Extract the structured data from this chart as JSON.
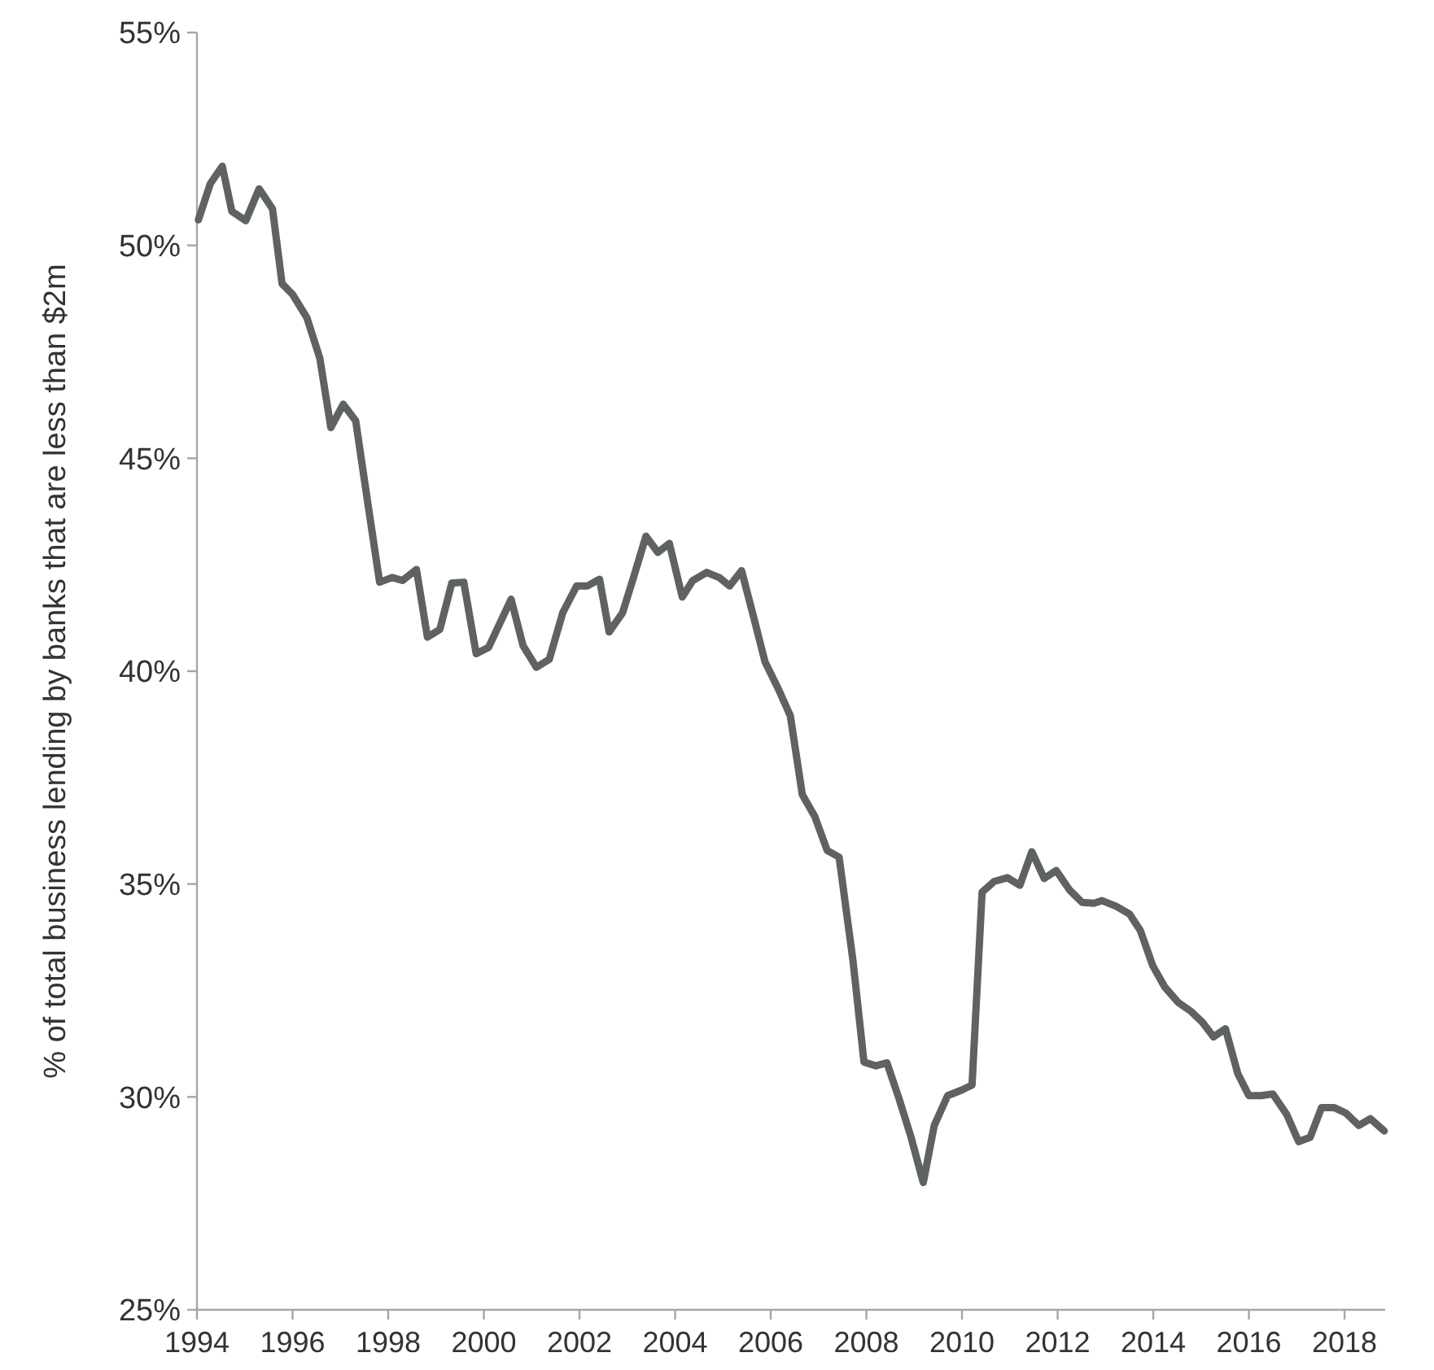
{
  "chart_data": {
    "type": "line",
    "ylabel": "% of total business lending by banks that are less than $2m",
    "xlim": [
      1994,
      2018.85
    ],
    "xticks": [
      1994,
      1996,
      1998,
      2000,
      2002,
      2004,
      2006,
      2008,
      2010,
      2012,
      2014,
      2016,
      2018
    ],
    "ylim": [
      25,
      55
    ],
    "yticks": [
      {
        "value": 25,
        "label": "25%"
      },
      {
        "value": 30,
        "label": "30%"
      },
      {
        "value": 35,
        "label": "35%"
      },
      {
        "value": 40,
        "label": "40%"
      },
      {
        "value": 45,
        "label": "45%"
      },
      {
        "value": 50,
        "label": "50%"
      },
      {
        "value": 55,
        "label": "55%"
      }
    ],
    "grid": false,
    "marker": "none",
    "line_style": "solid",
    "series": [
      {
        "color": "#5f6262",
        "x": [
          1994.03,
          1994.28,
          1994.53,
          1994.73,
          1995.02,
          1995.3,
          1995.58,
          1995.78,
          1996.0,
          1996.3,
          1996.57,
          1996.8,
          1997.06,
          1997.32,
          1997.57,
          1997.82,
          1998.08,
          1998.3,
          1998.59,
          1998.82,
          1999.08,
          1999.33,
          1999.58,
          1999.84,
          2000.1,
          2000.57,
          2000.82,
          2001.1,
          2001.37,
          2001.65,
          2001.94,
          2002.16,
          2002.42,
          2002.62,
          2002.9,
          2003.13,
          2003.39,
          2003.64,
          2003.88,
          2004.15,
          2004.37,
          2004.66,
          2004.92,
          2005.14,
          2005.39,
          2005.62,
          2005.88,
          2006.16,
          2006.41,
          2006.66,
          2006.92,
          2007.18,
          2007.43,
          2007.72,
          2007.95,
          2008.2,
          2008.43,
          2008.68,
          2008.93,
          2009.19,
          2009.42,
          2009.7,
          2009.99,
          2010.21,
          2010.42,
          2010.67,
          2010.95,
          2011.21,
          2011.46,
          2011.72,
          2011.97,
          2012.25,
          2012.51,
          2012.76,
          2012.93,
          2013.22,
          2013.5,
          2013.73,
          2013.99,
          2014.24,
          2014.52,
          2014.8,
          2015.03,
          2015.26,
          2015.51,
          2015.77,
          2016.0,
          2016.26,
          2016.5,
          2016.79,
          2017.04,
          2017.28,
          2017.52,
          2017.78,
          2018.03,
          2018.3,
          2018.54,
          2018.83
        ],
        "values": [
          50.6,
          51.45,
          51.86,
          50.8,
          50.58,
          51.33,
          50.86,
          49.1,
          48.85,
          48.3,
          47.35,
          45.72,
          46.27,
          45.88,
          43.97,
          42.09,
          42.2,
          42.13,
          42.39,
          40.8,
          40.98,
          42.07,
          42.09,
          40.41,
          40.56,
          41.69,
          40.6,
          40.09,
          40.28,
          41.37,
          42.0,
          42.0,
          42.16,
          40.92,
          41.37,
          42.2,
          43.17,
          42.79,
          43.0,
          41.74,
          42.13,
          42.32,
          42.2,
          42.0,
          42.36,
          41.37,
          40.22,
          39.58,
          38.95,
          37.1,
          36.59,
          35.79,
          35.63,
          33.2,
          30.82,
          30.73,
          30.8,
          29.97,
          29.07,
          27.99,
          29.33,
          30.03,
          30.16,
          30.28,
          34.81,
          35.06,
          35.15,
          34.97,
          35.76,
          35.13,
          35.32,
          34.86,
          34.57,
          34.55,
          34.61,
          34.48,
          34.3,
          33.91,
          33.08,
          32.58,
          32.22,
          32.0,
          31.75,
          31.41,
          31.6,
          30.54,
          30.03,
          30.03,
          30.07,
          29.59,
          28.95,
          29.05,
          29.75,
          29.75,
          29.62,
          29.33,
          29.49,
          29.2
        ]
      }
    ]
  }
}
